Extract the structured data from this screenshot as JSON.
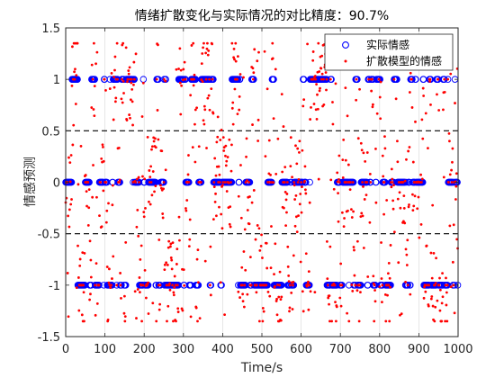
{
  "chart_data": {
    "type": "scatter",
    "title": "情绪扩散变化与实际情况的对比精度：90.7%",
    "xlabel": "Time/s",
    "ylabel": "情感预测",
    "xlim": [
      0,
      1000
    ],
    "ylim": [
      -1.5,
      1.5
    ],
    "xticks": [
      0,
      100,
      200,
      300,
      400,
      500,
      600,
      700,
      800,
      900,
      1000
    ],
    "yticks": [
      -1.5,
      -1,
      -0.5,
      0,
      0.5,
      1,
      1.5
    ],
    "ytick_labels": [
      "-1.5",
      "-1",
      "-0.5",
      "0",
      "0.5",
      "1",
      "1.5"
    ],
    "grid": "vertical",
    "reference_lines": [
      -0.5,
      0.5
    ],
    "legend_position": "top-right",
    "accuracy_percent": 90.7,
    "series": [
      {
        "name": "实际情感",
        "marker": "circle-open",
        "color": "#0000ff",
        "levels": [
          -1,
          0,
          1
        ],
        "x_range": [
          0,
          1000
        ],
        "count": 1000,
        "x_step": 1
      },
      {
        "name": "扩散模型的情感",
        "marker": "dot",
        "color": "#ff0000",
        "count": 1000,
        "x_step": 1,
        "value_range": [
          -1.35,
          1.35
        ],
        "description": "predicted values scattered around the actual levels -1, 0 and 1"
      }
    ]
  }
}
